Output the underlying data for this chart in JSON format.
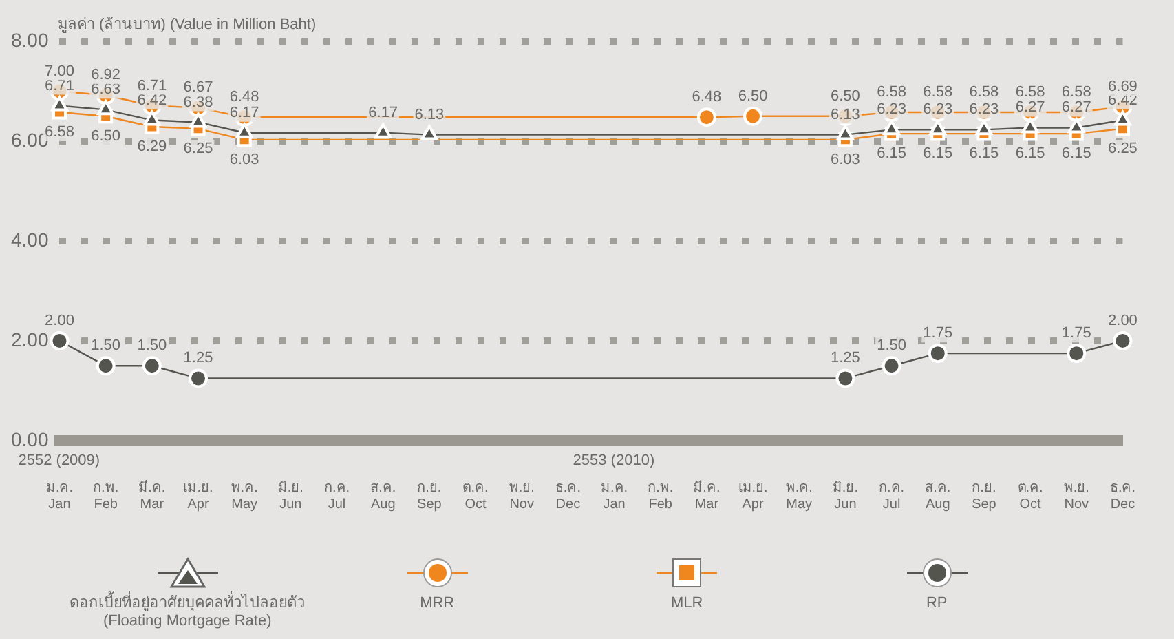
{
  "chart_data": {
    "type": "line",
    "ylabel": "มูลค่า (ล้านบาท) (Value in Million Baht)",
    "categories": [
      "ม.ค.\nJan",
      "ก.พ.\nFeb",
      "มี.ค.\nMar",
      "เม.ย.\nApr",
      "พ.ค.\nMay",
      "มิ.ย.\nJun",
      "ก.ค.\nJul",
      "ส.ค.\nAug",
      "ก.ย.\nSep",
      "ต.ค.\nOct",
      "พ.ย.\nNov",
      "ธ.ค.\nDec",
      "ม.ค.\nJan",
      "ก.พ.\nFeb",
      "มี.ค.\nMar",
      "เม.ย.\nApr",
      "พ.ค.\nMay",
      "มิ.ย.\nJun",
      "ก.ค.\nJul",
      "ส.ค.\nAug",
      "ก.ย.\nSep",
      "ต.ค.\nOct",
      "พ.ย.\nNov",
      "ธ.ค.\nDec"
    ],
    "series": [
      {
        "name": "ดอกเบี้ยที่อยู่อาศัยบุคคลทั่วไปลอยตัว\n(Floating Mortgage Rate)",
        "color": "#55554f",
        "marker": "triangle",
        "values": [
          6.71,
          6.63,
          6.42,
          6.38,
          6.17,
          null,
          null,
          6.17,
          6.13,
          null,
          null,
          null,
          null,
          null,
          null,
          null,
          null,
          6.13,
          6.23,
          6.23,
          6.23,
          6.27,
          6.27,
          6.42
        ],
        "value_labels": [
          "6.71",
          "6.63",
          "6.42",
          "6.38",
          "6.17",
          null,
          null,
          "6.17",
          "6.13",
          null,
          null,
          null,
          null,
          null,
          null,
          null,
          null,
          "6.13",
          "6.23",
          "6.23",
          "6.23",
          "6.27",
          "6.27",
          "6.42"
        ]
      },
      {
        "name": "MRR",
        "color": "#f0861e",
        "marker": "circle",
        "values": [
          7.0,
          6.92,
          6.71,
          6.67,
          6.48,
          null,
          null,
          null,
          null,
          null,
          null,
          null,
          null,
          null,
          6.48,
          6.5,
          null,
          6.5,
          6.58,
          6.58,
          6.58,
          6.58,
          6.58,
          6.69
        ],
        "value_labels": [
          "7.00",
          "6.92",
          "6.71",
          "6.67",
          "6.48",
          null,
          null,
          null,
          null,
          null,
          null,
          null,
          null,
          null,
          "6.48",
          "6.50",
          null,
          "6.50",
          "6.58",
          "6.58",
          "6.58",
          "6.58",
          "6.58",
          "6.69"
        ]
      },
      {
        "name": "MLR",
        "color": "#f0861e",
        "marker": "square",
        "values": [
          6.58,
          6.5,
          6.29,
          6.25,
          6.03,
          null,
          null,
          null,
          null,
          null,
          null,
          null,
          null,
          null,
          null,
          null,
          null,
          6.03,
          6.15,
          6.15,
          6.15,
          6.15,
          6.15,
          6.25
        ],
        "value_labels": [
          "6.58",
          "6.50",
          "6.29",
          "6.25",
          "6.03",
          null,
          null,
          null,
          null,
          null,
          null,
          null,
          null,
          null,
          null,
          null,
          null,
          "6.03",
          "6.15",
          "6.15",
          "6.15",
          "6.15",
          "6.15",
          "6.25"
        ]
      },
      {
        "name": "RP",
        "color": "#55554f",
        "marker": "circle",
        "values": [
          2.0,
          1.5,
          1.5,
          1.25,
          null,
          null,
          null,
          null,
          null,
          null,
          null,
          null,
          null,
          null,
          null,
          null,
          null,
          1.25,
          1.5,
          1.75,
          null,
          null,
          1.75,
          2.0
        ],
        "value_labels": [
          "2.00",
          "1.50",
          "1.50",
          "1.25",
          null,
          null,
          null,
          null,
          null,
          null,
          null,
          null,
          null,
          null,
          null,
          null,
          null,
          "1.25",
          "1.50",
          "1.75",
          null,
          null,
          "1.75",
          "2.00"
        ]
      }
    ],
    "ylim": [
      0,
      8
    ],
    "yticks": [
      {
        "value": 0,
        "label": "0.00"
      },
      {
        "value": 2,
        "label": "2.00"
      },
      {
        "value": 4,
        "label": "4.00"
      },
      {
        "value": 6,
        "label": "6.00"
      },
      {
        "value": 8,
        "label": "8.00"
      }
    ],
    "grid": "y",
    "legend": "bottom",
    "annotations": [
      "2552 (2009)",
      "2553 (2010)"
    ]
  }
}
